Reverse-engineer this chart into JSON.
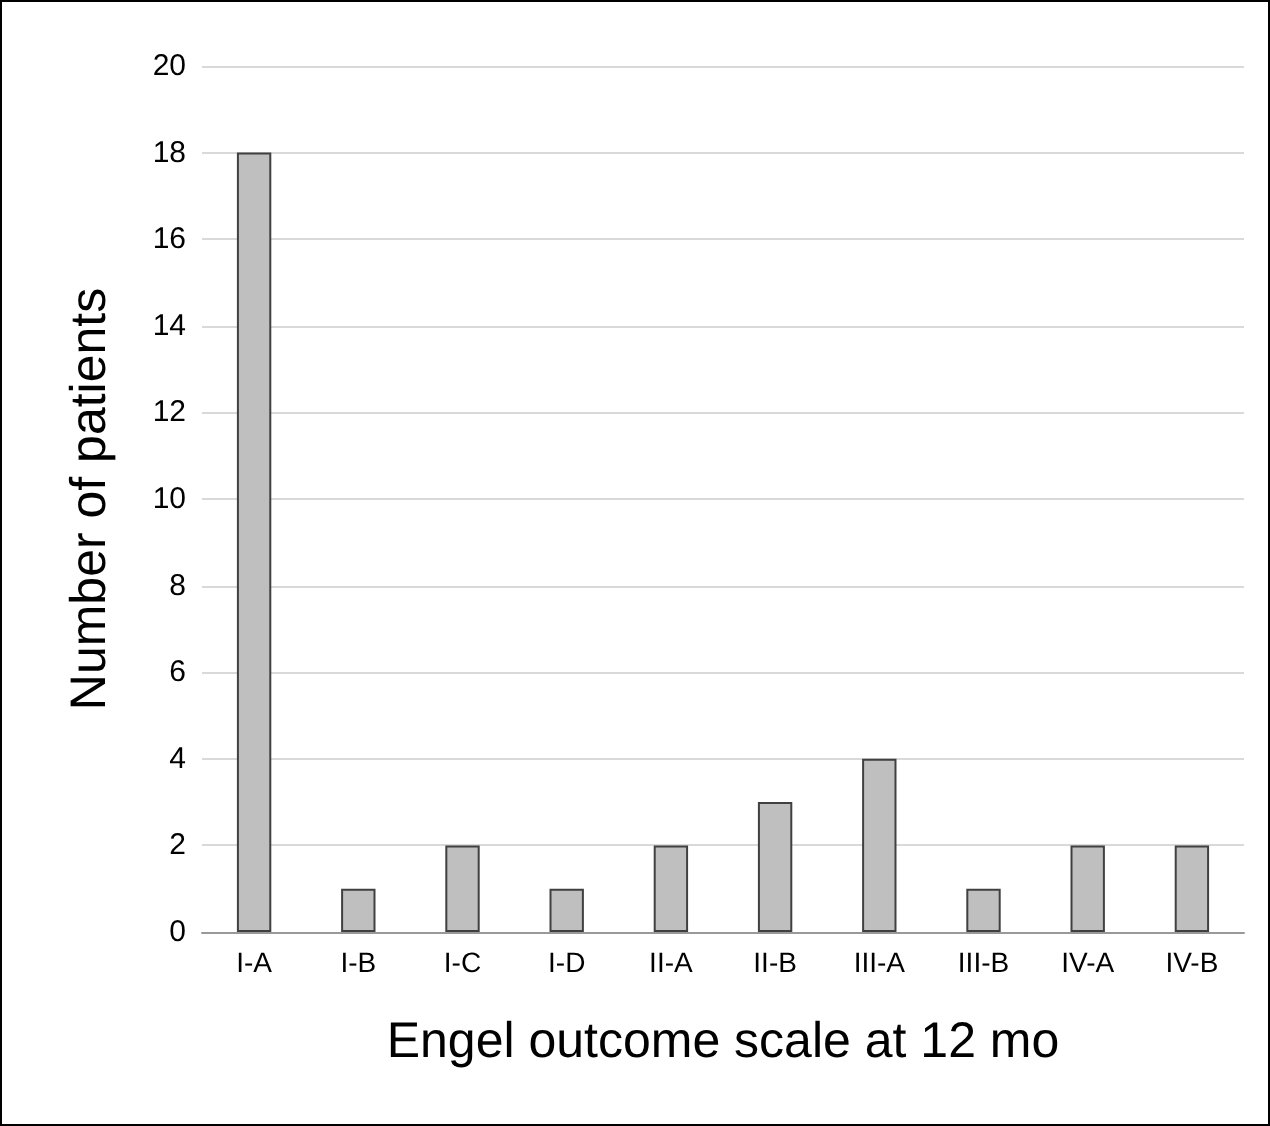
{
  "chart_data": {
    "type": "bar",
    "xlabel": "Engel outcome scale at 12 mo",
    "ylabel": "Number of patients",
    "categories": [
      "I-A",
      "I-B",
      "I-C",
      "I-D",
      "II-A",
      "II-B",
      "III-A",
      "III-B",
      "IV-A",
      "IV-B"
    ],
    "values": [
      18,
      1,
      2,
      1,
      2,
      3,
      4,
      1,
      2,
      2
    ],
    "color": "#bfbfbf",
    "ylim": [
      0,
      20
    ],
    "yticks": [
      0,
      2,
      4,
      6,
      8,
      10,
      12,
      14,
      16,
      18,
      20
    ],
    "grid": "y"
  }
}
